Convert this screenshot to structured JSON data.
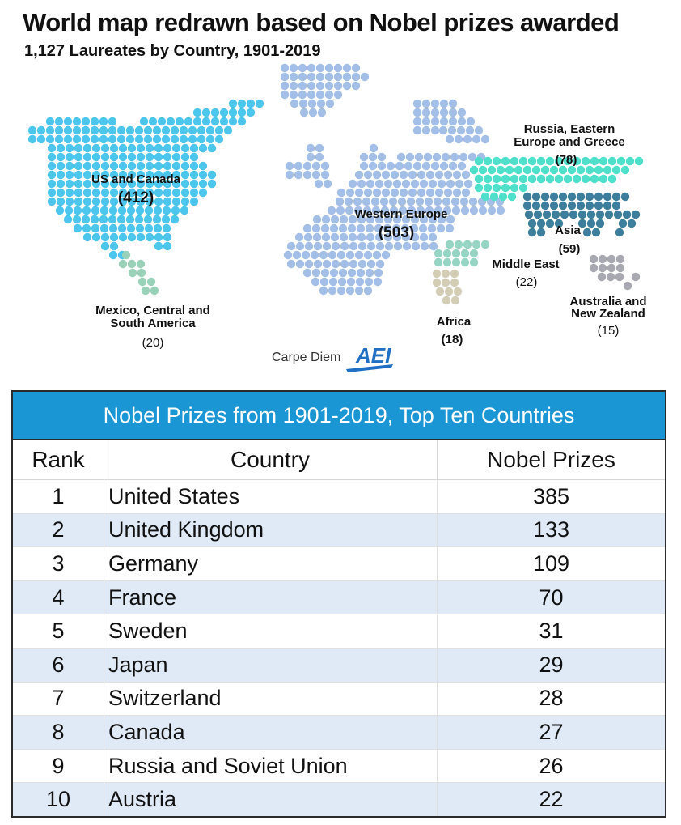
{
  "title": "World map redrawn based on Nobel prizes awarded",
  "subtitle": "1,127 Laureates by Country, 1901-2019",
  "map": {
    "regions": [
      {
        "name": "US and Canada",
        "count": "(412)",
        "color": "#4cc6ec"
      },
      {
        "name": "Western Europe",
        "count": "(503)",
        "color": "#a3bfe8"
      },
      {
        "name": "Russia, Eastern Europe and Greece",
        "count": "(78)",
        "color": "#4fe0cc"
      },
      {
        "name": "Asia",
        "count": "(59)",
        "color": "#3c7e9c"
      },
      {
        "name": "Middle East",
        "count": "(22)",
        "color": "#96d4c4"
      },
      {
        "name": "Africa",
        "count": "(18)",
        "color": "#d4cdb6"
      },
      {
        "name": "Mexico, Central and South America",
        "count": "(20)",
        "color": "#99d2b8"
      },
      {
        "name": "Australia and New Zealand",
        "count": "(15)",
        "color": "#a8a8b0"
      }
    ],
    "labels": {
      "us_canada": "US and Canada",
      "us_canada_count": "(412)",
      "western_europe": "Western Europe",
      "western_europe_count": "(503)",
      "russia_line1": "Russia, Eastern",
      "russia_line2": "Europe and Greece",
      "russia_count": "(78)",
      "asia": "Asia",
      "asia_count": "(59)",
      "middle_east": "Middle East",
      "middle_east_count": "(22)",
      "africa": "Africa",
      "africa_count": "(18)",
      "latam_line1": "Mexico, Central and",
      "latam_line2": "South America",
      "latam_count": "(20)",
      "australia_line1": "Australia and",
      "australia_line2": "New Zealand",
      "australia_count": "(15)"
    },
    "credit": "Carpe Diem",
    "logo": "AEI"
  },
  "table": {
    "caption": "Nobel Prizes from 1901-2019, Top Ten Countries",
    "headers": {
      "rank": "Rank",
      "country": "Country",
      "prizes": "Nobel Prizes"
    },
    "stripe_color": "#dfeaf6",
    "header_color": "#1b96d4"
  },
  "chart_data": {
    "type": "table",
    "title": "Nobel Prizes from 1901-2019, Top Ten Countries",
    "columns": [
      "Rank",
      "Country",
      "Nobel Prizes"
    ],
    "rows": [
      {
        "rank": "1",
        "country": "United States",
        "prizes": "385"
      },
      {
        "rank": "2",
        "country": "United Kingdom",
        "prizes": "133"
      },
      {
        "rank": "3",
        "country": "Germany",
        "prizes": "109"
      },
      {
        "rank": "4",
        "country": "France",
        "prizes": "70"
      },
      {
        "rank": "5",
        "country": "Sweden",
        "prizes": "31"
      },
      {
        "rank": "6",
        "country": "Japan",
        "prizes": "29"
      },
      {
        "rank": "7",
        "country": "Switzerland",
        "prizes": "28"
      },
      {
        "rank": "8",
        "country": "Canada",
        "prizes": "27"
      },
      {
        "rank": "9",
        "country": "Russia and Soviet Union",
        "prizes": "26"
      },
      {
        "rank": "10",
        "country": "Austria",
        "prizes": "22"
      }
    ]
  }
}
